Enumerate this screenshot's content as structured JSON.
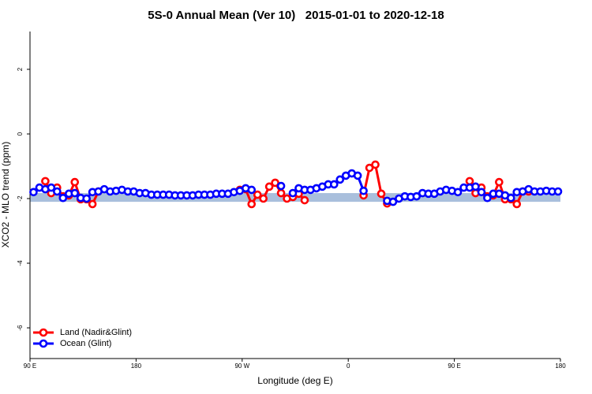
{
  "chart_data": {
    "type": "line",
    "title": "5S-0 Annual Mean (Ver 10)   2015-01-01 to 2020-12-18",
    "x_label": "Longitude (deg E)",
    "y_label": "XCO2 - MLO trend (ppm)",
    "xlim": [
      90,
      540
    ],
    "xticks": [
      {
        "value": 90,
        "label": "90 E"
      },
      180,
      {
        "value": 270,
        "label": "90 W"
      },
      {
        "value": 360,
        "label": "0"
      },
      {
        "value": 450,
        "label": "90 E"
      },
      {
        "value": 540,
        "label": "180"
      }
    ],
    "ylim": [
      -6.95,
      3.17
    ],
    "yticks": [
      -6,
      -4,
      -2,
      0,
      2
    ],
    "band": {
      "color": "#a9bfdc",
      "range": [
        -1.83,
        -2.1
      ]
    },
    "legend": "bottom-left",
    "x": [
      93,
      98,
      103,
      108,
      113,
      118,
      123,
      128,
      133,
      138,
      143,
      148,
      153,
      158,
      163,
      168,
      173,
      178,
      183,
      188,
      193,
      198,
      203,
      208,
      213,
      218,
      223,
      228,
      233,
      238,
      243,
      248,
      253,
      258,
      263,
      268,
      273,
      278,
      283,
      288,
      293,
      298,
      303,
      308,
      313,
      318,
      323,
      328,
      333,
      338,
      343,
      348,
      353,
      358,
      363,
      368,
      373,
      378,
      383,
      388,
      393,
      398,
      403,
      408,
      413,
      418,
      423,
      428,
      433,
      438,
      443,
      448,
      453,
      458,
      463,
      468,
      473,
      478,
      483,
      488,
      493,
      498,
      503,
      508,
      513,
      518,
      523,
      528,
      533,
      538
    ],
    "series": [
      {
        "name": "Land (Nadir&Glint)",
        "color": "#ff0000",
        "values": [
          null,
          null,
          -1.46,
          -1.83,
          -1.66,
          -1.93,
          -1.9,
          -1.49,
          -2.02,
          -2.02,
          -2.17,
          -1.78,
          null,
          null,
          null,
          null,
          null,
          null,
          null,
          null,
          null,
          null,
          null,
          null,
          null,
          null,
          null,
          null,
          null,
          null,
          null,
          null,
          null,
          null,
          null,
          -1.73,
          -1.71,
          -2.17,
          -1.88,
          -2.0,
          -1.63,
          -1.51,
          -1.83,
          -2.0,
          -1.95,
          -1.85,
          -2.05,
          null,
          null,
          null,
          null,
          null,
          null,
          null,
          null,
          null,
          -1.9,
          -1.05,
          -0.95,
          -1.85,
          -2.15,
          null,
          null,
          null,
          null,
          null,
          null,
          null,
          null,
          null,
          null,
          null,
          null,
          null,
          -1.46,
          -1.83,
          -1.66,
          -1.93,
          -1.9,
          -1.49,
          -2.02,
          -2.02,
          -2.17,
          -1.78,
          -1.78,
          null,
          null,
          null,
          null,
          null
        ]
      },
      {
        "name": "Ocean (Glint)",
        "color": "#0000ff",
        "values": [
          -1.8,
          -1.66,
          -1.71,
          -1.66,
          -1.78,
          -1.98,
          -1.85,
          -1.83,
          -1.98,
          -2.0,
          -1.8,
          -1.78,
          -1.71,
          -1.78,
          -1.76,
          -1.73,
          -1.78,
          -1.78,
          -1.83,
          -1.83,
          -1.88,
          -1.88,
          -1.88,
          -1.88,
          -1.9,
          -1.9,
          -1.9,
          -1.9,
          -1.88,
          -1.88,
          -1.88,
          -1.85,
          -1.85,
          -1.85,
          -1.8,
          -1.76,
          -1.68,
          -1.73,
          null,
          null,
          null,
          null,
          -1.61,
          null,
          -1.83,
          -1.68,
          -1.73,
          -1.73,
          -1.68,
          -1.63,
          -1.56,
          -1.56,
          -1.41,
          -1.29,
          -1.22,
          -1.29,
          -1.76,
          null,
          null,
          null,
          -2.07,
          -2.1,
          -2.0,
          -1.93,
          -1.95,
          -1.93,
          -1.83,
          -1.85,
          -1.85,
          -1.78,
          -1.73,
          -1.76,
          -1.8,
          -1.66,
          -1.66,
          -1.63,
          -1.8,
          -1.98,
          -1.85,
          -1.85,
          -1.9,
          -1.98,
          -1.8,
          -1.78,
          -1.71,
          -1.78,
          -1.78,
          -1.76,
          -1.78,
          -1.78
        ]
      }
    ]
  }
}
